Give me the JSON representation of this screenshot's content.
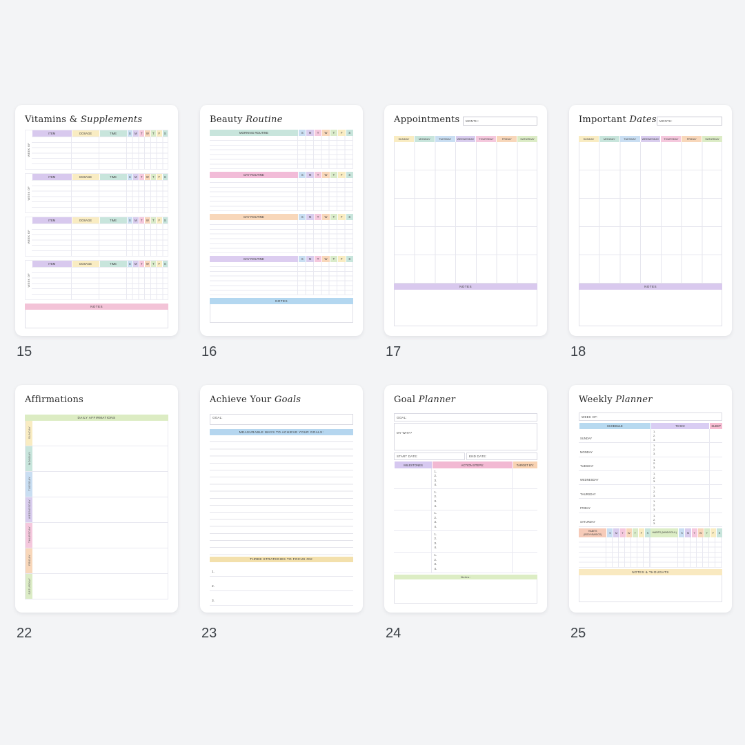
{
  "page_numbers": [
    "15",
    "16",
    "17",
    "18",
    "22",
    "23",
    "24",
    "25"
  ],
  "days_short": [
    "S",
    "M",
    "T",
    "W",
    "T",
    "F",
    "S"
  ],
  "days_full": [
    "SUNDAY",
    "MONDAY",
    "TUESDAY",
    "WEDNESDAY",
    "THURSDAY",
    "FRIDAY",
    "SATURDAY"
  ],
  "palette": {
    "page_background": "#f3f4f6",
    "day_blue": "#c9def2",
    "day_lavender": "#d9cdee",
    "day_pink": "#f5c8dd",
    "day_peach": "#f8d7ba",
    "day_green": "#d9ebc9",
    "day_yellow": "#f9ecc2",
    "day_mint": "#c8e5dc",
    "notes_pink": "#f3c3d7",
    "notes_blue": "#b3d7f0",
    "notes_lavender": "#d9c9ee",
    "notes_green": "#dcedc4",
    "notes_yellow": "#f9e9c0"
  },
  "vitamins": {
    "title_main": "Vitamins &",
    "title_accent": "Supplements",
    "week_of_label": "WEEK OF",
    "col_item": "ITEM",
    "col_dosage": "DOSAGE",
    "col_time": "TIME",
    "notes_label": "NOTES"
  },
  "beauty": {
    "title_main": "Beauty",
    "title_accent": "Routine",
    "sections": [
      "MORNING ROUTINE",
      "DAY ROUTINE",
      "DAY ROUTINE",
      "DAY ROUTINE"
    ],
    "notes_label": "NOTES"
  },
  "appointments": {
    "title_main": "Appointments",
    "month_label": "MONTH:",
    "notes_label": "NOTES"
  },
  "important_dates": {
    "title_main": "Important",
    "title_accent": "Dates",
    "month_label": "MONTH:",
    "notes_label": "NOTES"
  },
  "affirmations": {
    "title_main": "Affirmations",
    "header": "DAILY AFFIRMATIONS"
  },
  "achieve_goals": {
    "title_main": "Achieve Your",
    "title_accent": "Goals",
    "goal_label": "GOAL:",
    "measurable_header": "MEASURABLE WAYS TO ACHIEVE YOUR GOALS:",
    "strategies_header": "THREE STRATEGIES TO FOCUS ON:",
    "strategy_numbers": [
      "1.",
      "2.",
      "3."
    ]
  },
  "goal_planner": {
    "title_main": "Goal",
    "title_accent": "Planner",
    "goal_label": "GOAL:",
    "why_label": "MY WHY?",
    "start_date_label": "START DATE:",
    "end_date_label": "END DATE:",
    "col_milestones": "MILESTONES",
    "col_action_steps": "ACTION STEPS:",
    "col_target_by": "TARGET BY:",
    "step_numbers": [
      "1.",
      "2.",
      "3.",
      "4."
    ],
    "notes_label": "Notes:"
  },
  "weekly_planner": {
    "title_main": "Weekly",
    "title_accent": "Planner",
    "week_of_label": "WEEK OF:",
    "col_schedule": "SCHEDULE",
    "col_todo": "TO-DO",
    "col_sleep": "SLEEP",
    "todo_numbers": [
      "1.",
      "2.",
      "3."
    ],
    "habits_body_label": "HABITS (BODY/BASICS)",
    "habits_mind_label": "HABITS (MIND/SOUL)",
    "notes_label": "NOTES & THOUGHTS"
  }
}
